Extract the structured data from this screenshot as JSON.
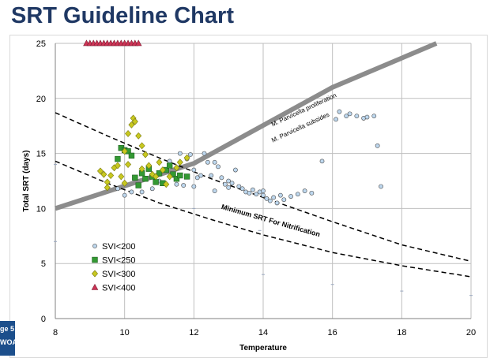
{
  "slide": {
    "title": "SRT Guideline Chart",
    "edge_text": [
      "ge 5",
      "WOA"
    ]
  },
  "colors": {
    "title": "#1f3864",
    "svi200": "#bdd7ee",
    "svi250": "#339933",
    "svi300": "#c8c820",
    "svi400": "#cc3355",
    "thick_line": "#8c8c8c",
    "edge_tab": "#1c4f8c"
  },
  "chart_data": {
    "type": "scatter",
    "title": "",
    "xlabel": "Temperature",
    "ylabel": "Total SRT (days)",
    "xlim": [
      8,
      20
    ],
    "ylim": [
      0,
      25
    ],
    "xticks": [
      "8",
      "10",
      "12",
      "14",
      "16",
      "18",
      "20"
    ],
    "yticks": [
      "0",
      "5",
      "10",
      "15",
      "20",
      "25"
    ],
    "grid": true,
    "legend_position": "bottom-left",
    "series": [
      {
        "name": "SVI<200",
        "marker": "circle",
        "color": "#bdd7ee",
        "points": [
          [
            9.8,
            11.8
          ],
          [
            10,
            11.2
          ],
          [
            10.2,
            11.5
          ],
          [
            10.5,
            11.5
          ],
          [
            10.8,
            11.8
          ],
          [
            11,
            12.5
          ],
          [
            11.2,
            12.2
          ],
          [
            11.4,
            13
          ],
          [
            11.5,
            12.2
          ],
          [
            11.7,
            12.1
          ],
          [
            11.8,
            14.5
          ],
          [
            11.9,
            14.9
          ],
          [
            12,
            13.5
          ],
          [
            12.1,
            12.8
          ],
          [
            12.2,
            13
          ],
          [
            12.3,
            15
          ],
          [
            12.4,
            14.2
          ],
          [
            12.5,
            13
          ],
          [
            12.6,
            14.2
          ],
          [
            12.7,
            13.8
          ],
          [
            12.8,
            12.8
          ],
          [
            12.9,
            12.2
          ],
          [
            13,
            12.5
          ],
          [
            13.1,
            12.3
          ],
          [
            13.2,
            13.5
          ],
          [
            13.3,
            12
          ],
          [
            13.4,
            11.8
          ],
          [
            13.5,
            11.5
          ],
          [
            13.6,
            11.4
          ],
          [
            13.7,
            11.7
          ],
          [
            13.8,
            11.3
          ],
          [
            13.9,
            11.5
          ],
          [
            14,
            11.2
          ],
          [
            14.1,
            10.9
          ],
          [
            14.2,
            10.7
          ],
          [
            14.3,
            11
          ],
          [
            14.4,
            10.5
          ],
          [
            14.5,
            11.2
          ],
          [
            14.6,
            10.8
          ],
          [
            14.8,
            11.1
          ],
          [
            15,
            11.3
          ],
          [
            15.2,
            11.6
          ],
          [
            15.4,
            11.4
          ],
          [
            15.7,
            14.3
          ],
          [
            16.1,
            18.1
          ],
          [
            16.2,
            18.8
          ],
          [
            16.4,
            18.4
          ],
          [
            16.5,
            18.6
          ],
          [
            16.7,
            18.4
          ],
          [
            16.9,
            18.2
          ],
          [
            17,
            18.3
          ],
          [
            17.2,
            18.4
          ],
          [
            17.3,
            15.7
          ],
          [
            17.4,
            12
          ],
          [
            11.3,
            14.3
          ],
          [
            11.6,
            15
          ],
          [
            12,
            12
          ],
          [
            12.6,
            11.6
          ],
          [
            13,
            11.9
          ],
          [
            14,
            11.6
          ]
        ]
      },
      {
        "name": "SVI<250",
        "marker": "square",
        "color": "#339933",
        "points": [
          [
            9.8,
            14.5
          ],
          [
            9.9,
            15.5
          ],
          [
            10,
            15.3
          ],
          [
            10.1,
            15.2
          ],
          [
            10.2,
            14.8
          ],
          [
            10.3,
            12.8
          ],
          [
            10.4,
            12.1
          ],
          [
            10.5,
            13.2
          ],
          [
            10.6,
            12.7
          ],
          [
            10.7,
            13.6
          ],
          [
            10.8,
            12.9
          ],
          [
            10.9,
            12.4
          ],
          [
            11,
            13.2
          ],
          [
            11.1,
            12.3
          ],
          [
            11.2,
            13.5
          ],
          [
            11.3,
            13.9
          ],
          [
            11.4,
            13.1
          ],
          [
            11.5,
            12.7
          ],
          [
            11.6,
            13
          ],
          [
            11.8,
            12.9
          ]
        ]
      },
      {
        "name": "SVI<300",
        "marker": "diamond",
        "color": "#c8c820",
        "points": [
          [
            9.3,
            13.4
          ],
          [
            9.4,
            13.1
          ],
          [
            9.5,
            12.4
          ],
          [
            9.6,
            13
          ],
          [
            9.7,
            13.7
          ],
          [
            9.8,
            13.9
          ],
          [
            9.9,
            12.9
          ],
          [
            10,
            15.2
          ],
          [
            10.1,
            16.8
          ],
          [
            10.2,
            17.6
          ],
          [
            10.25,
            18.2
          ],
          [
            10.3,
            17.9
          ],
          [
            10.4,
            16.6
          ],
          [
            10.5,
            15.7
          ],
          [
            10.6,
            14.9
          ],
          [
            10.7,
            13.9
          ],
          [
            10.8,
            13.1
          ],
          [
            10.9,
            12.9
          ],
          [
            11,
            14.2
          ],
          [
            11.1,
            13.5
          ],
          [
            11.2,
            12.2
          ],
          [
            11.3,
            12.9
          ],
          [
            11.5,
            13.7
          ],
          [
            11.6,
            14.2
          ],
          [
            11.8,
            14.6
          ],
          [
            9.5,
            11.9
          ],
          [
            10,
            12.3
          ],
          [
            10.5,
            13.6
          ],
          [
            10.1,
            14
          ]
        ]
      },
      {
        "name": "SVI<400",
        "marker": "triangle",
        "color": "#cc3355",
        "points": [
          [
            8.9,
            25
          ],
          [
            9,
            25
          ],
          [
            9.1,
            25
          ],
          [
            9.2,
            25
          ],
          [
            9.3,
            25
          ],
          [
            9.4,
            25
          ],
          [
            9.5,
            25
          ],
          [
            9.6,
            25
          ],
          [
            9.7,
            25
          ],
          [
            9.8,
            25
          ],
          [
            9.9,
            25
          ],
          [
            10,
            25
          ],
          [
            10.1,
            25
          ],
          [
            10.2,
            25
          ],
          [
            10.3,
            25
          ],
          [
            10.4,
            25
          ]
        ]
      }
    ],
    "lines": [
      {
        "style": "thick-solid",
        "points": [
          [
            8,
            10
          ],
          [
            12,
            14.1
          ],
          [
            16,
            21
          ],
          [
            19,
            25
          ]
        ]
      },
      {
        "style": "dashed",
        "points": [
          [
            8,
            18.7
          ],
          [
            9.5,
            16.6
          ],
          [
            11,
            14.6
          ],
          [
            12.5,
            12.7
          ],
          [
            14,
            11
          ],
          [
            16,
            8.8
          ],
          [
            18,
            6.7
          ],
          [
            20,
            5.2
          ]
        ]
      },
      {
        "style": "dashed",
        "points": [
          [
            8,
            14.3
          ],
          [
            9.5,
            12.3
          ],
          [
            11,
            10.5
          ],
          [
            12.5,
            9
          ],
          [
            14,
            7.6
          ],
          [
            16,
            6
          ],
          [
            18,
            4.8
          ],
          [
            20,
            3.8
          ]
        ]
      }
    ],
    "annotations": [
      {
        "text": "M. Parvicella proliferation",
        "x": 15.2,
        "y": 18.8,
        "rotate": -25
      },
      {
        "text": "M. Parvicella subsides",
        "x": 15.1,
        "y": 17.2,
        "rotate": -25
      },
      {
        "text": "Minimum SRT For Nitrification",
        "x": 14.2,
        "y": 8.7,
        "rotate": 16
      }
    ],
    "stray_ticks": [
      [
        8,
        14
      ],
      [
        12,
        10
      ],
      [
        13.9,
        8
      ],
      [
        14,
        4
      ],
      [
        18,
        2.5
      ],
      [
        20,
        2.1
      ],
      [
        16,
        3.1
      ],
      [
        8,
        7
      ]
    ]
  }
}
